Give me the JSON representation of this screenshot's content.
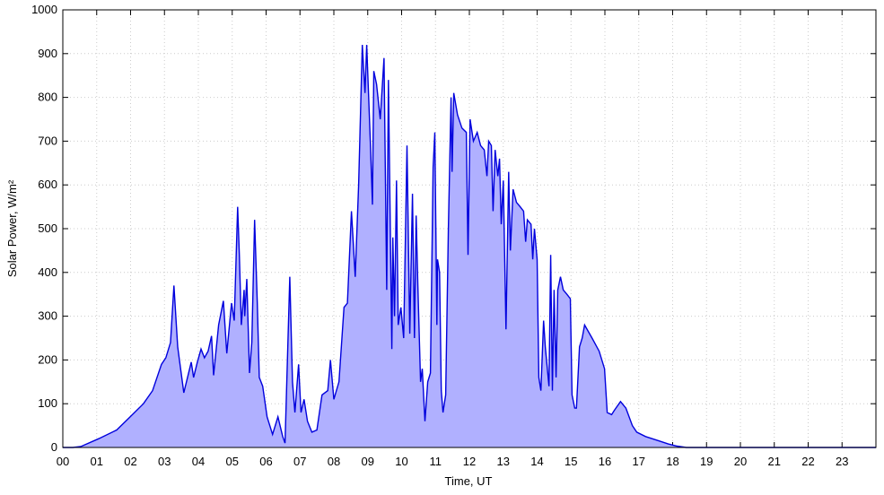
{
  "chart_data": {
    "type": "area",
    "xlabel": "Time, UT",
    "ylabel": "Solar Power, W/m²",
    "xlim": [
      0,
      24
    ],
    "ylim": [
      0,
      1000
    ],
    "xticks": [
      {
        "value": 0,
        "label": "00"
      },
      {
        "value": 1,
        "label": "01"
      },
      {
        "value": 2,
        "label": "02"
      },
      {
        "value": 3,
        "label": "03"
      },
      {
        "value": 4,
        "label": "04"
      },
      {
        "value": 5,
        "label": "05"
      },
      {
        "value": 6,
        "label": "06"
      },
      {
        "value": 7,
        "label": "07"
      },
      {
        "value": 8,
        "label": "08"
      },
      {
        "value": 9,
        "label": "09"
      },
      {
        "value": 10,
        "label": "10"
      },
      {
        "value": 11,
        "label": "11"
      },
      {
        "value": 12,
        "label": "12"
      },
      {
        "value": 13,
        "label": "13"
      },
      {
        "value": 14,
        "label": "14"
      },
      {
        "value": 15,
        "label": "15"
      },
      {
        "value": 16,
        "label": "16"
      },
      {
        "value": 17,
        "label": "17"
      },
      {
        "value": 18,
        "label": "18"
      },
      {
        "value": 19,
        "label": "19"
      },
      {
        "value": 20,
        "label": "20"
      },
      {
        "value": 21,
        "label": "21"
      },
      {
        "value": 22,
        "label": "22"
      },
      {
        "value": 23,
        "label": "23"
      }
    ],
    "yticks": [
      0,
      100,
      200,
      300,
      400,
      500,
      600,
      700,
      800,
      900,
      1000
    ],
    "grid": true,
    "series": [
      {
        "color": "#0000dd",
        "fill": "#b0b0ff",
        "x": [
          0,
          0.3,
          0.53,
          1.06,
          1.59,
          1.99,
          2.38,
          2.65,
          2.91,
          3.04,
          3.18,
          3.28,
          3.39,
          3.57,
          3.79,
          3.86,
          3.97,
          4.08,
          4.18,
          4.29,
          4.39,
          4.45,
          4.6,
          4.74,
          4.84,
          4.98,
          5.06,
          5.11,
          5.16,
          5.21,
          5.27,
          5.35,
          5.37,
          5.43,
          5.51,
          5.58,
          5.66,
          5.74,
          5.8,
          5.85,
          5.9,
          6.03,
          6.19,
          6.35,
          6.49,
          6.56,
          6.7,
          6.78,
          6.85,
          6.96,
          7.03,
          7.12,
          7.22,
          7.35,
          7.5,
          7.65,
          7.82,
          7.9,
          8.0,
          8.15,
          8.3,
          8.4,
          8.52,
          8.63,
          8.73,
          8.84,
          8.92,
          8.97,
          9.08,
          9.14,
          9.18,
          9.26,
          9.37,
          9.48,
          9.56,
          9.61,
          9.71,
          9.74,
          9.79,
          9.85,
          9.9,
          9.98,
          10.06,
          10.16,
          10.24,
          10.32,
          10.38,
          10.43,
          10.48,
          10.56,
          10.61,
          10.69,
          10.77,
          10.85,
          10.93,
          10.98,
          11.04,
          11.06,
          11.12,
          11.17,
          11.22,
          11.3,
          11.38,
          11.46,
          11.49,
          11.54,
          11.65,
          11.78,
          11.91,
          11.96,
          12.02,
          12.12,
          12.23,
          12.33,
          12.44,
          12.52,
          12.57,
          12.65,
          12.7,
          12.76,
          12.84,
          12.89,
          12.94,
          13.0,
          13.08,
          13.16,
          13.21,
          13.29,
          13.39,
          13.5,
          13.6,
          13.66,
          13.71,
          13.82,
          13.87,
          13.92,
          14.0,
          14.05,
          14.11,
          14.19,
          14.24,
          14.35,
          14.4,
          14.45,
          14.5,
          14.56,
          14.61,
          14.69,
          14.77,
          14.88,
          14.98,
          15.03,
          15.11,
          15.16,
          15.25,
          15.33,
          15.4,
          15.62,
          15.83,
          15.99,
          16.07,
          16.2,
          16.28,
          16.46,
          16.62,
          16.81,
          16.94,
          17.2,
          17.6,
          17.87,
          18.13,
          18.4,
          24
        ],
        "values": [
          0,
          0,
          2,
          20,
          40,
          70,
          100,
          130,
          190,
          205,
          240,
          370,
          230,
          125,
          195,
          160,
          195,
          225,
          205,
          220,
          255,
          165,
          280,
          335,
          215,
          330,
          290,
          420,
          550,
          440,
          280,
          360,
          300,
          385,
          170,
          240,
          520,
          330,
          160,
          150,
          140,
          70,
          30,
          70,
          25,
          10,
          390,
          150,
          80,
          190,
          80,
          110,
          60,
          35,
          40,
          120,
          130,
          200,
          110,
          150,
          320,
          330,
          540,
          390,
          600,
          920,
          810,
          920,
          690,
          555,
          860,
          830,
          750,
          890,
          360,
          840,
          225,
          480,
          300,
          610,
          280,
          320,
          250,
          690,
          260,
          580,
          250,
          530,
          370,
          150,
          180,
          60,
          150,
          170,
          640,
          720,
          280,
          430,
          400,
          130,
          80,
          120,
          500,
          800,
          630,
          810,
          760,
          730,
          720,
          440,
          750,
          700,
          720,
          690,
          680,
          620,
          700,
          690,
          540,
          680,
          620,
          660,
          510,
          610,
          270,
          630,
          450,
          590,
          560,
          550,
          540,
          470,
          520,
          510,
          430,
          500,
          430,
          160,
          130,
          290,
          230,
          140,
          440,
          130,
          360,
          160,
          360,
          390,
          360,
          350,
          340,
          120,
          90,
          90,
          230,
          250,
          280,
          250,
          220,
          180,
          80,
          75,
          85,
          105,
          90,
          50,
          35,
          25,
          15,
          8,
          3,
          0,
          0
        ]
      }
    ]
  }
}
